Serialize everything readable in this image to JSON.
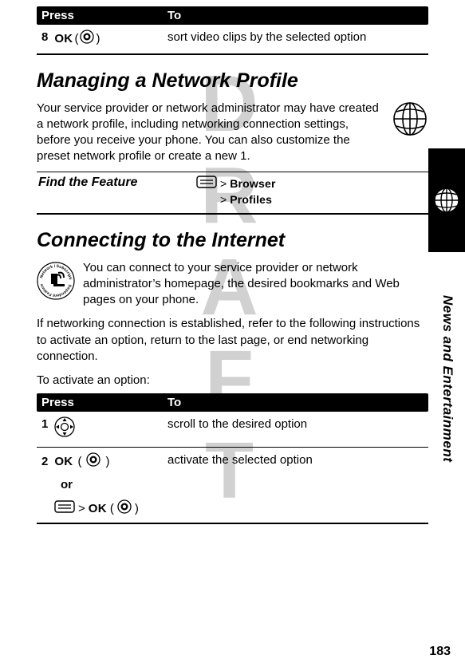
{
  "table1": {
    "header_press": "Press",
    "header_to": "To",
    "row": {
      "num": "8",
      "key_label": "OK",
      "open": "(",
      "close": ")",
      "desc": "sort video clips by the selected option"
    }
  },
  "sectionA": {
    "title": "Managing a Network Profile",
    "para": "Your service provider or network administrator may have created a network profile, including networking connection settings, before you receive your phone. You can also customize the preset network profile or create a new 1."
  },
  "find_feature": {
    "label": "Find the Feature",
    "gt": ">",
    "browser": "Browser",
    "profiles": "Profiles"
  },
  "sectionB": {
    "title": "Connecting to the Internet",
    "para1": "You can connect to your service provider or network administrator’s homepage, the desired bookmarks and Web pages on your phone.",
    "para2": "If networking connection is established, refer to the following instructions to activate an option, return to the last page, or end networking connection.",
    "lead": "To activate an option:"
  },
  "table2": {
    "header_press": "Press",
    "header_to": "To",
    "row1": {
      "num": "1",
      "desc": "scroll to the desired option"
    },
    "row2": {
      "num": "2",
      "key_label": "OK",
      "open": "(",
      "close": ")",
      "desc": "activate the selected option",
      "or": "or",
      "gt": ">",
      "key_label2": "OK",
      "open2": "(",
      "close2": ")"
    }
  },
  "side": {
    "vertical_label": "News and Entertainment"
  },
  "page_number": "183",
  "icons": {
    "center_button": "center-button-icon",
    "menu_key": "menu-key-icon",
    "nav_ring": "nav-ring-icon",
    "globe": "globe-icon",
    "network_subscription": "network-subscription-dependent-feature-icon"
  },
  "watermark_text": "DRAFT"
}
